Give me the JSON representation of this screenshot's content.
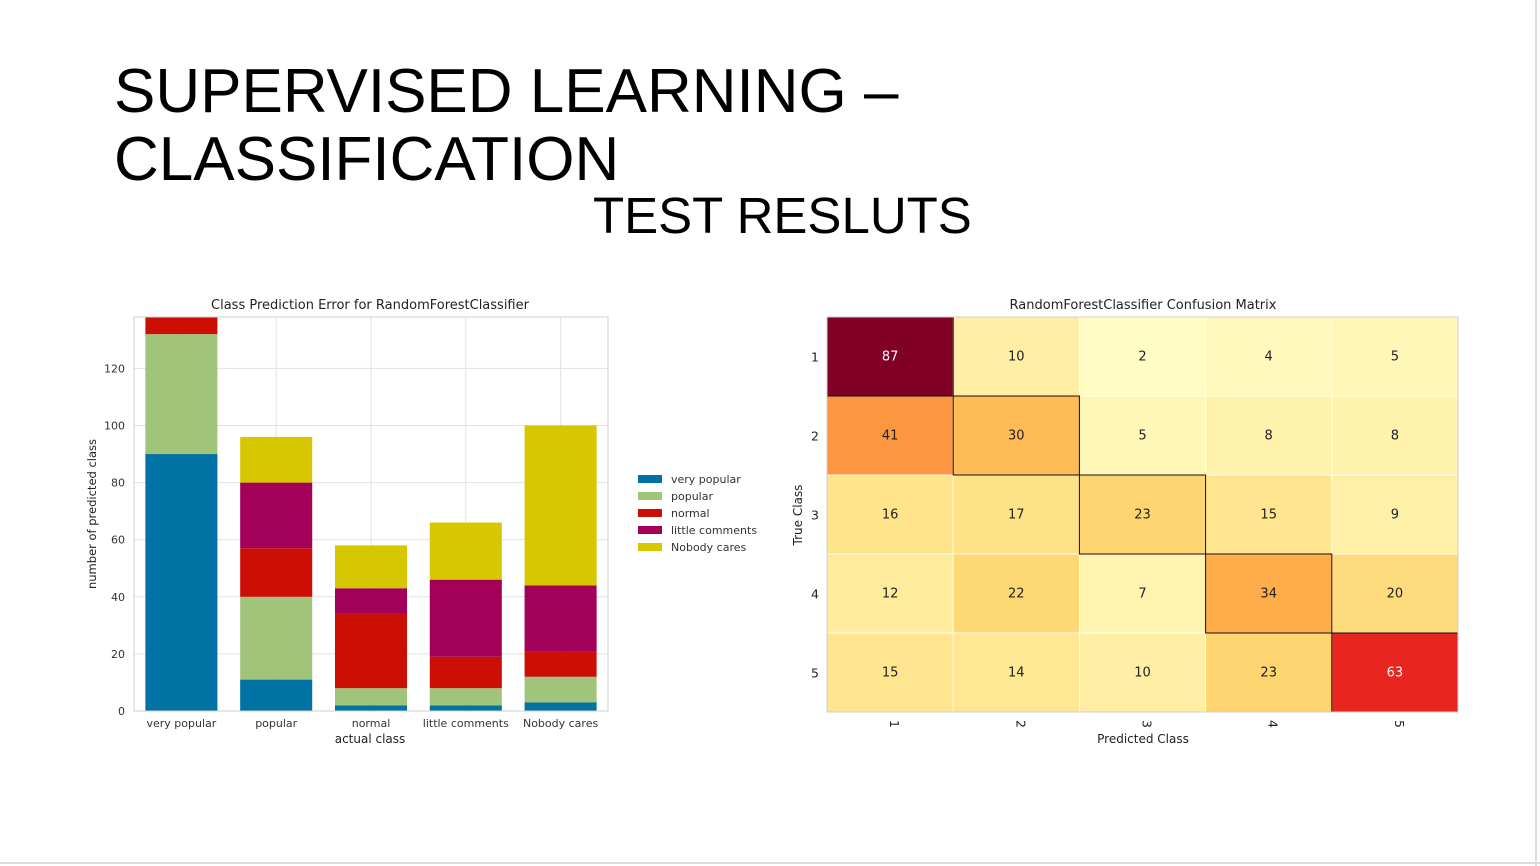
{
  "slide": {
    "title_line1": "SUPERVISED LEARNING –",
    "title_line2": "CLASSIFICATION",
    "subtitle": "TEST RESLUTS"
  },
  "chart_data": [
    {
      "type": "bar",
      "stacked": true,
      "title": "Class Prediction Error for RandomForestClassifier",
      "xlabel": "actual class",
      "ylabel": "number of predicted class",
      "categories": [
        "very popular",
        "popular",
        "normal",
        "little comments",
        "Nobody cares"
      ],
      "ylim": [
        0,
        138
      ],
      "yticks": [
        0,
        20,
        40,
        60,
        80,
        100,
        120
      ],
      "grid": true,
      "legend": "right",
      "series": [
        {
          "name": "very popular",
          "color": "#0072a3",
          "values": [
            90,
            11,
            2,
            2,
            3
          ]
        },
        {
          "name": "popular",
          "color": "#a0c47a",
          "values": [
            42,
            29,
            6,
            6,
            9
          ]
        },
        {
          "name": "normal",
          "color": "#cc0f05",
          "values": [
            6,
            17,
            26,
            11,
            9
          ]
        },
        {
          "name": "little comments",
          "color": "#a3005a",
          "values": [
            0,
            23,
            9,
            27,
            23
          ]
        },
        {
          "name": "Nobody cares",
          "color": "#d7c700",
          "values": [
            0,
            16,
            15,
            20,
            56
          ]
        }
      ]
    },
    {
      "type": "heatmap",
      "title": "RandomForestClassifier Confusion Matrix",
      "xlabel": "Predicted Class",
      "ylabel": "True Class",
      "x_labels": [
        "1",
        "2",
        "3",
        "4",
        "5"
      ],
      "y_labels": [
        "1",
        "2",
        "3",
        "4",
        "5"
      ],
      "colormap": "YlOrRd",
      "matrix": [
        [
          87,
          10,
          2,
          4,
          5
        ],
        [
          41,
          30,
          5,
          8,
          8
        ],
        [
          16,
          17,
          23,
          15,
          9
        ],
        [
          12,
          22,
          7,
          34,
          20
        ],
        [
          15,
          14,
          10,
          23,
          63
        ]
      ]
    }
  ]
}
